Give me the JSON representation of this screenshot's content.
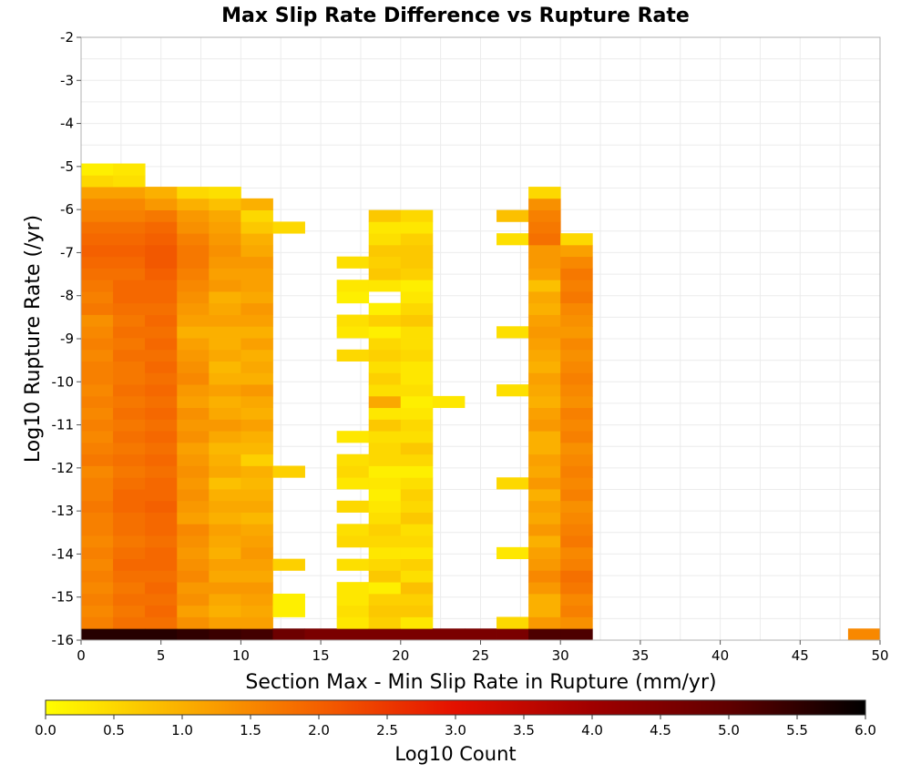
{
  "chart_data": {
    "type": "heatmap",
    "title": "Max Slip Rate Difference vs Rupture Rate",
    "xlabel": "Section Max - Min Slip Rate in Rupture (mm/yr)",
    "ylabel": "Log10 Rupture Rate (/yr)",
    "xlim": [
      0,
      50
    ],
    "ylim": [
      -16,
      -2
    ],
    "x_ticks": [
      "0",
      "5",
      "10",
      "15",
      "20",
      "25",
      "30",
      "35",
      "40",
      "45",
      "50"
    ],
    "y_ticks": [
      "-2",
      "-3",
      "-4",
      "-5",
      "-6",
      "-7",
      "-8",
      "-9",
      "-10",
      "-11",
      "-12",
      "-13",
      "-14",
      "-15",
      "-16"
    ],
    "grid": true,
    "cell_width": 2,
    "cell_height": 0.27,
    "rows_bottom_up": "value[j] is the cell spanning y = -16 + j*0.27 .. -16 + (j+1)*0.27; 0 = empty",
    "columns": [
      {
        "x": 0,
        "values": [
          5.6,
          1.6,
          1.5,
          1.6,
          1.5,
          1.6,
          1.5,
          1.6,
          1.5,
          1.6,
          1.6,
          1.7,
          1.6,
          1.6,
          1.5,
          1.7,
          1.6,
          1.5,
          1.6,
          1.5,
          1.6,
          1.5,
          1.6,
          1.6,
          1.5,
          1.6,
          1.5,
          1.4,
          1.7,
          1.6,
          1.7,
          1.8,
          1.9,
          2.0,
          1.9,
          1.8,
          1.6,
          1.5,
          1.2,
          0.5,
          0.2
        ]
      },
      {
        "x": 2,
        "values": [
          5.6,
          1.8,
          1.7,
          1.8,
          1.7,
          1.8,
          1.9,
          1.8,
          1.7,
          1.8,
          1.8,
          1.9,
          1.9,
          1.8,
          1.7,
          1.8,
          1.7,
          1.8,
          1.7,
          1.8,
          1.7,
          1.8,
          1.7,
          1.7,
          1.8,
          1.7,
          1.8,
          1.7,
          1.8,
          1.9,
          1.9,
          1.8,
          1.9,
          2.0,
          1.9,
          1.8,
          1.6,
          1.5,
          1.2,
          0.4,
          0.3
        ]
      },
      {
        "x": 4,
        "values": [
          5.6,
          1.8,
          1.9,
          1.8,
          1.9,
          1.8,
          1.9,
          1.9,
          1.8,
          1.9,
          1.9,
          2.0,
          1.9,
          1.9,
          1.8,
          1.9,
          1.8,
          1.9,
          1.8,
          1.9,
          1.8,
          1.9,
          1.8,
          1.9,
          1.8,
          1.9,
          1.8,
          1.9,
          1.8,
          1.9,
          1.9,
          2.0,
          2.1,
          2.1,
          2.0,
          1.9,
          1.7,
          1.3,
          1.0,
          0,
          0
        ]
      },
      {
        "x": 6,
        "values": [
          5.5,
          1.4,
          1.2,
          1.4,
          1.3,
          1.5,
          1.4,
          1.3,
          1.4,
          1.5,
          1.2,
          1.3,
          1.4,
          1.3,
          1.4,
          1.3,
          1.2,
          1.4,
          1.3,
          1.4,
          1.2,
          1.3,
          1.5,
          1.4,
          1.3,
          1.2,
          1.0,
          1.2,
          1.3,
          1.4,
          1.5,
          1.6,
          1.7,
          1.7,
          1.6,
          1.4,
          1.3,
          1.0,
          0.5,
          0,
          0
        ]
      },
      {
        "x": 8,
        "values": [
          5.4,
          1.2,
          1.0,
          1.1,
          1.3,
          1.1,
          1.2,
          1.0,
          1.1,
          1.2,
          1.0,
          1.1,
          1.0,
          0.8,
          1.1,
          1.0,
          0.9,
          1.1,
          1.3,
          1.1,
          1.0,
          1.2,
          1.0,
          0.9,
          1.1,
          1.0,
          1.0,
          1.2,
          1.1,
          1.0,
          1.3,
          1.2,
          1.3,
          1.4,
          1.3,
          1.2,
          1.1,
          0.8,
          0.4,
          0,
          0
        ]
      },
      {
        "x": 10,
        "values": [
          5.3,
          1.2,
          1.1,
          1.2,
          1.3,
          1.1,
          1.2,
          1.3,
          1.2,
          1.1,
          0.9,
          1.1,
          1.0,
          0.9,
          1.0,
          0.6,
          0.9,
          1.0,
          1.2,
          1.0,
          1.1,
          1.3,
          1.0,
          1.1,
          1.0,
          1.2,
          1.0,
          1.2,
          1.3,
          1.1,
          1.2,
          1.2,
          1.3,
          1.1,
          1.0,
          0.7,
          0.5,
          1.0,
          0,
          0,
          0
        ]
      },
      {
        "x": 12,
        "values": [
          4.8,
          0,
          0.2,
          0.2,
          0,
          0,
          0.6,
          0,
          0,
          0,
          0,
          0,
          0,
          0,
          0.6,
          0,
          0,
          0,
          0,
          0,
          0,
          0,
          0,
          0,
          0,
          0,
          0,
          0,
          0,
          0,
          0,
          0,
          0,
          0,
          0,
          0.5,
          0,
          0,
          0,
          0,
          0
        ]
      },
      {
        "x": 14,
        "values": [
          4.6,
          0,
          0,
          0,
          0,
          0,
          0,
          0,
          0,
          0,
          0,
          0,
          0,
          0,
          0,
          0,
          0,
          0,
          0,
          0,
          0,
          0,
          0,
          0,
          0,
          0,
          0,
          0,
          0,
          0,
          0,
          0,
          0,
          0,
          0,
          0,
          0,
          0,
          0,
          0,
          0
        ]
      },
      {
        "x": 16,
        "values": [
          4.6,
          0.3,
          0.4,
          0.3,
          0.3,
          0,
          0.4,
          0,
          0.5,
          0.4,
          0,
          0.5,
          0,
          0.3,
          0.5,
          0.4,
          0,
          0.3,
          0,
          0,
          0,
          0,
          0,
          0,
          0.5,
          0,
          0.3,
          0.4,
          0,
          0.2,
          0.3,
          0,
          0.4,
          0,
          0,
          0,
          0,
          0,
          0,
          0,
          0
        ]
      },
      {
        "x": 18,
        "values": [
          4.6,
          0.6,
          0.7,
          0.6,
          0.2,
          0.7,
          0.5,
          0.3,
          0.5,
          0.6,
          0.4,
          0.3,
          0.2,
          0.3,
          0.2,
          0.5,
          0.5,
          0.4,
          0.7,
          0.3,
          1.1,
          0.4,
          0.6,
          0.4,
          0.6,
          0.5,
          0.2,
          0.6,
          0.2,
          0,
          0.3,
          0.7,
          0.6,
          0.7,
          0.4,
          0.3,
          0.7,
          0,
          0,
          0,
          0
        ]
      },
      {
        "x": 20,
        "values": [
          4.6,
          0.3,
          0.7,
          0.6,
          0.8,
          0.4,
          0.6,
          0.3,
          0.5,
          0.4,
          0.7,
          0.5,
          0.6,
          0.4,
          0.2,
          0.5,
          0.7,
          0.4,
          0.5,
          0.3,
          0.2,
          0.4,
          0.3,
          0.3,
          0.5,
          0.4,
          0.4,
          0.7,
          0.5,
          0.3,
          0.2,
          0.6,
          0.7,
          0.7,
          0.6,
          0.3,
          0.5,
          0,
          0,
          0,
          0
        ]
      },
      {
        "x": 22,
        "values": [
          4.6,
          0,
          0,
          0,
          0,
          0,
          0,
          0,
          0,
          0,
          0,
          0,
          0,
          0,
          0,
          0,
          0,
          0,
          0,
          0,
          0.3,
          0,
          0,
          0,
          0,
          0,
          0,
          0,
          0,
          0,
          0,
          0,
          0,
          0,
          0,
          0,
          0,
          0,
          0,
          0,
          0
        ]
      },
      {
        "x": 24,
        "values": [
          4.6,
          0,
          0,
          0,
          0,
          0,
          0,
          0,
          0,
          0,
          0,
          0,
          0,
          0,
          0,
          0,
          0,
          0,
          0,
          0,
          0,
          0,
          0,
          0,
          0,
          0,
          0,
          0,
          0,
          0,
          0,
          0,
          0,
          0,
          0,
          0,
          0,
          0,
          0,
          0,
          0
        ]
      },
      {
        "x": 26,
        "values": [
          4.6,
          0.5,
          0,
          0,
          0,
          0,
          0,
          0.3,
          0,
          0,
          0,
          0,
          0,
          0.5,
          0,
          0,
          0,
          0,
          0,
          0,
          0,
          0.4,
          0,
          0,
          0,
          0,
          0.4,
          0,
          0,
          0,
          0,
          0,
          0,
          0,
          0.4,
          0,
          0.8,
          0,
          0,
          0,
          0
        ]
      },
      {
        "x": 28,
        "values": [
          5.2,
          1.3,
          1.0,
          1.0,
          1.3,
          1.5,
          1.3,
          1.2,
          1.0,
          1.3,
          1.1,
          1.2,
          1.0,
          1.3,
          1.1,
          1.2,
          1.0,
          1.0,
          1.3,
          1.2,
          1.0,
          1.1,
          1.2,
          1.0,
          1.1,
          1.2,
          1.3,
          1.2,
          1.0,
          1.1,
          0.8,
          1.2,
          1.3,
          1.3,
          1.8,
          1.7,
          1.6,
          1.4,
          0.5,
          0,
          0
        ]
      },
      {
        "x": 30,
        "values": [
          5.2,
          1.4,
          1.6,
          1.5,
          1.7,
          1.8,
          1.6,
          1.5,
          1.7,
          1.6,
          1.5,
          1.4,
          1.6,
          1.5,
          1.6,
          1.5,
          1.4,
          1.6,
          1.5,
          1.6,
          1.4,
          1.5,
          1.6,
          1.5,
          1.4,
          1.5,
          1.3,
          1.4,
          1.5,
          1.7,
          1.6,
          1.7,
          1.5,
          1.2,
          0.5,
          0,
          0,
          0,
          0,
          0,
          0
        ]
      },
      {
        "x": 48,
        "values": [
          1.5,
          0,
          0,
          0,
          0,
          0,
          0,
          0,
          0,
          0,
          0,
          0,
          0,
          0,
          0,
          0,
          0,
          0,
          0,
          0,
          0,
          0,
          0,
          0,
          0,
          0,
          0,
          0,
          0,
          0,
          0,
          0,
          0,
          0,
          0,
          0,
          0,
          0,
          0,
          0,
          0
        ]
      }
    ],
    "colorbar": {
      "label": "Log10 Count",
      "min": 0.0,
      "max": 6.0,
      "ticks": [
        "0.0",
        "0.5",
        "1.0",
        "1.5",
        "2.0",
        "2.5",
        "3.0",
        "3.5",
        "4.0",
        "4.5",
        "5.0",
        "5.5",
        "6.0"
      ],
      "stops": [
        {
          "v": 0.0,
          "color": "#ffff00"
        },
        {
          "v": 1.0,
          "color": "#fbb000"
        },
        {
          "v": 2.0,
          "color": "#f46000"
        },
        {
          "v": 3.0,
          "color": "#e41000"
        },
        {
          "v": 4.0,
          "color": "#a00000"
        },
        {
          "v": 5.0,
          "color": "#600000"
        },
        {
          "v": 6.0,
          "color": "#000000"
        }
      ]
    }
  }
}
